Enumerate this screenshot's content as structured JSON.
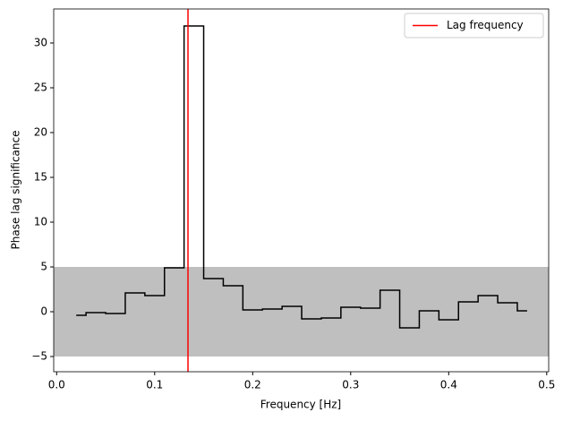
{
  "chart_data": {
    "type": "step",
    "xlabel": "Frequency [Hz]",
    "ylabel": "Phase lag significance",
    "x": [
      0.02,
      0.04,
      0.06,
      0.08,
      0.1,
      0.12,
      0.14,
      0.16,
      0.18,
      0.2,
      0.22,
      0.24,
      0.26,
      0.28,
      0.3,
      0.32,
      0.34,
      0.36,
      0.38,
      0.4,
      0.42,
      0.44,
      0.46,
      0.48
    ],
    "values": [
      -0.4,
      -0.1,
      -0.2,
      2.1,
      1.8,
      4.9,
      31.9,
      3.7,
      2.9,
      0.2,
      0.3,
      0.6,
      -0.8,
      -0.7,
      0.5,
      0.4,
      2.4,
      -1.8,
      0.1,
      -0.9,
      1.1,
      1.8,
      1.0,
      0.1
    ],
    "color": "#000000",
    "band": [
      -5,
      5
    ],
    "band_color": "#bfbfbf",
    "lag_line": {
      "name": "Lag frequency",
      "x": 0.134,
      "color": "#ff0000"
    },
    "legend": "upper right",
    "xlim": [
      -0.003,
      0.502
    ],
    "ylim": [
      -6.7,
      33.8
    ],
    "xticks": [
      {
        "value": 0,
        "label": "0.0"
      },
      0.1,
      0.2,
      0.3,
      0.4,
      0.5
    ],
    "yticks": [
      {
        "value": -5,
        "label": "−5"
      },
      0,
      5,
      10,
      15,
      20,
      25,
      30
    ]
  }
}
